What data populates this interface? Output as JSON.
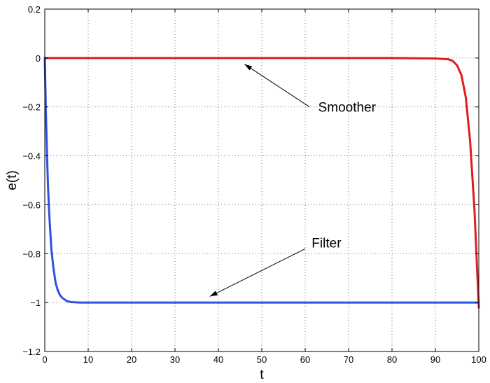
{
  "chart_data": {
    "type": "line",
    "title": "",
    "xlabel": "t",
    "ylabel": "e(t)",
    "xlim": [
      0,
      100
    ],
    "ylim": [
      -1.2,
      0.2
    ],
    "xticks": [
      0,
      10,
      20,
      30,
      40,
      50,
      60,
      70,
      80,
      90,
      100
    ],
    "yticks": [
      0.2,
      0,
      -0.2,
      -0.4,
      -0.6,
      -0.8,
      -1,
      -1.2
    ],
    "xtick_labels": [
      "0",
      "10",
      "20",
      "30",
      "40",
      "50",
      "60",
      "70",
      "80",
      "90",
      "100"
    ],
    "ytick_labels": [
      "0.2",
      "0",
      "−0.2",
      "−0.4",
      "−0.6",
      "−0.8",
      "−1",
      "−1.2"
    ],
    "grid": true,
    "series": [
      {
        "label": "Smoother",
        "color": "#e41a1c",
        "x": [
          0,
          10,
          20,
          30,
          40,
          50,
          60,
          70,
          80,
          90,
          93,
          94,
          95,
          96,
          97,
          98,
          99,
          100
        ],
        "y": [
          0,
          0,
          0,
          0,
          0,
          0,
          0,
          0,
          0,
          -0.002,
          -0.005,
          -0.012,
          -0.03,
          -0.07,
          -0.16,
          -0.34,
          -0.62,
          -1.02
        ]
      },
      {
        "label": "Filter",
        "color": "#3050e0",
        "x": [
          0,
          0.25,
          0.5,
          0.75,
          1,
          1.5,
          2,
          2.5,
          3,
          3.5,
          4,
          5,
          6,
          7,
          8,
          10,
          20,
          30,
          40,
          50,
          60,
          70,
          80,
          90,
          100
        ],
        "y": [
          0,
          -0.22,
          -0.39,
          -0.53,
          -0.63,
          -0.78,
          -0.86,
          -0.92,
          -0.95,
          -0.97,
          -0.98,
          -0.993,
          -0.998,
          -0.999,
          -1,
          -1,
          -1,
          -1,
          -1,
          -1,
          -1,
          -1,
          -1,
          -1,
          -1
        ]
      }
    ],
    "annotations": [
      {
        "text": "Smoother",
        "text_at": [
          63,
          -0.2
        ],
        "arrow_from": [
          61,
          -0.2
        ],
        "arrow_to": [
          46,
          -0.025
        ]
      },
      {
        "text": "Filter",
        "text_at": [
          61.5,
          -0.755
        ],
        "arrow_from": [
          60,
          -0.78
        ],
        "arrow_to": [
          38,
          -0.975
        ]
      }
    ]
  }
}
